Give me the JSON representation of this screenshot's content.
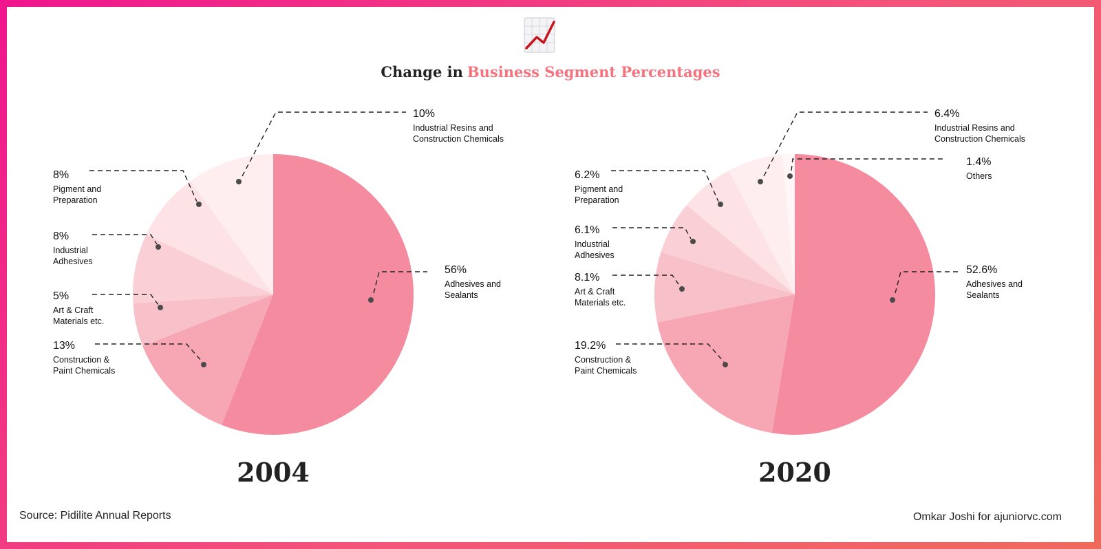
{
  "title": {
    "prefix": "Change in",
    "highlight": "Business Segment Percentages"
  },
  "colors": {
    "highlight": "#f4737f",
    "slices": [
      "#f48b9e",
      "#f6a7b3",
      "#f8c0c8",
      "#fad0d6",
      "#fde3e6",
      "#feeeef",
      "#fff6f7"
    ]
  },
  "icon": "chart-increasing-icon",
  "footer": {
    "source": "Source: Pidilite Annual Reports",
    "credit": "Omkar Joshi for ajuniorvc.com"
  },
  "chart_data": [
    {
      "type": "pie",
      "title": "2004",
      "slices": [
        {
          "label": [
            "Adhesives and",
            "Sealants"
          ],
          "value": 56,
          "display": "56%"
        },
        {
          "label": [
            "Construction &",
            "Paint Chemicals"
          ],
          "value": 13,
          "display": "13%"
        },
        {
          "label": [
            "Art & Craft",
            "Materials etc."
          ],
          "value": 5,
          "display": "5%"
        },
        {
          "label": [
            "Industrial",
            "Adhesives"
          ],
          "value": 8,
          "display": "8%"
        },
        {
          "label": [
            "Pigment and",
            "Preparation"
          ],
          "value": 8,
          "display": "8%"
        },
        {
          "label": [
            "Industrial Resins and",
            "Construction Chemicals"
          ],
          "value": 10,
          "display": "10%"
        }
      ]
    },
    {
      "type": "pie",
      "title": "2020",
      "slices": [
        {
          "label": [
            "Adhesives and",
            "Sealants"
          ],
          "value": 52.6,
          "display": "52.6%"
        },
        {
          "label": [
            "Construction &",
            "Paint Chemicals"
          ],
          "value": 19.2,
          "display": "19.2%"
        },
        {
          "label": [
            "Art & Craft",
            "Materials etc."
          ],
          "value": 8.1,
          "display": "8.1%"
        },
        {
          "label": [
            "Industrial",
            "Adhesives"
          ],
          "value": 6.1,
          "display": "6.1%"
        },
        {
          "label": [
            "Pigment and",
            "Preparation"
          ],
          "value": 6.2,
          "display": "6.2%"
        },
        {
          "label": [
            "Industrial Resins and",
            "Construction Chemicals"
          ],
          "value": 6.4,
          "display": "6.4%"
        },
        {
          "label": [
            "Others"
          ],
          "value": 1.4,
          "display": "1.4%"
        }
      ]
    }
  ]
}
